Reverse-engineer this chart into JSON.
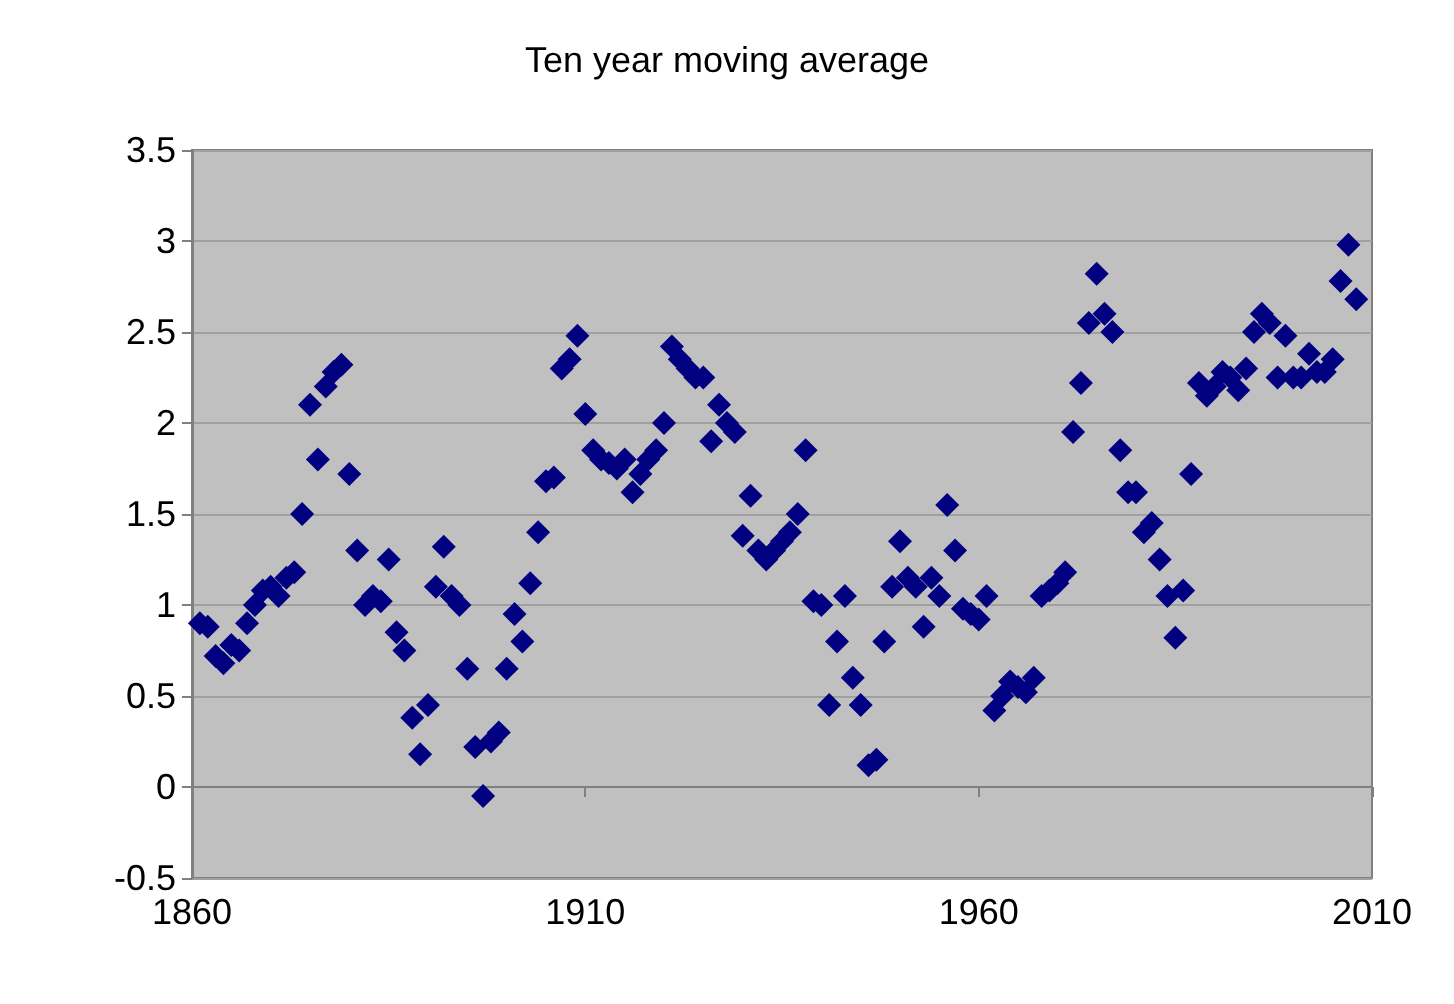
{
  "chart_data": {
    "type": "scatter",
    "title": "Ten year moving average",
    "x": [
      1861,
      1862,
      1863,
      1864,
      1865,
      1866,
      1867,
      1868,
      1869,
      1870,
      1871,
      1872,
      1873,
      1874,
      1875,
      1876,
      1877,
      1878,
      1879,
      1880,
      1881,
      1882,
      1883,
      1884,
      1885,
      1886,
      1887,
      1888,
      1889,
      1890,
      1891,
      1892,
      1893,
      1894,
      1895,
      1896,
      1897,
      1898,
      1899,
      1900,
      1901,
      1902,
      1903,
      1904,
      1905,
      1906,
      1907,
      1908,
      1909,
      1910,
      1911,
      1912,
      1913,
      1914,
      1915,
      1916,
      1917,
      1918,
      1919,
      1920,
      1921,
      1922,
      1923,
      1924,
      1925,
      1926,
      1927,
      1928,
      1929,
      1930,
      1931,
      1932,
      1933,
      1934,
      1935,
      1936,
      1937,
      1938,
      1939,
      1940,
      1941,
      1942,
      1943,
      1944,
      1945,
      1946,
      1947,
      1948,
      1949,
      1950,
      1951,
      1952,
      1953,
      1954,
      1955,
      1956,
      1957,
      1958,
      1959,
      1960,
      1961,
      1962,
      1963,
      1964,
      1965,
      1966,
      1967,
      1968,
      1969,
      1970,
      1971,
      1972,
      1973,
      1974,
      1975,
      1976,
      1977,
      1978,
      1979,
      1980,
      1981,
      1982,
      1983,
      1984,
      1985,
      1986,
      1987,
      1988,
      1989,
      1990,
      1991,
      1992,
      1993,
      1994,
      1995,
      1996,
      1997,
      1998,
      1999,
      2000,
      2001,
      2002,
      2003,
      2004,
      2005,
      2006,
      2007,
      2008
    ],
    "series": [
      {
        "color": "#000080",
        "values": [
          0.9,
          0.88,
          0.72,
          0.68,
          0.78,
          0.75,
          0.9,
          1.0,
          1.08,
          1.1,
          1.05,
          1.15,
          1.18,
          1.5,
          2.1,
          1.8,
          2.2,
          2.28,
          2.32,
          1.72,
          1.3,
          1.0,
          1.05,
          1.02,
          1.25,
          0.85,
          0.75,
          0.38,
          0.18,
          0.45,
          1.1,
          1.32,
          1.05,
          1.0,
          0.65,
          0.22,
          -0.05,
          0.25,
          0.3,
          0.65,
          0.95,
          0.8,
          1.12,
          1.4,
          1.68,
          1.7,
          2.3,
          2.35,
          2.48,
          2.05,
          1.85,
          1.8,
          1.78,
          1.75,
          1.8,
          1.62,
          1.72,
          1.8,
          1.85,
          2.0,
          2.42,
          2.35,
          2.3,
          2.25,
          2.25,
          1.9,
          2.1,
          2.0,
          1.95,
          1.38,
          1.6,
          1.3,
          1.25,
          1.3,
          1.35,
          1.4,
          1.5,
          1.85,
          1.02,
          1.0,
          0.45,
          0.8,
          1.05,
          0.6,
          0.45,
          0.12,
          0.15,
          0.8,
          1.1,
          1.35,
          1.15,
          1.1,
          0.88,
          1.15,
          1.05,
          1.55,
          1.3,
          0.98,
          0.95,
          0.92,
          1.05,
          0.42,
          0.5,
          0.58,
          0.55,
          0.52,
          0.6,
          1.05,
          1.08,
          1.12,
          1.18,
          1.95,
          2.22,
          2.55,
          2.82,
          2.6,
          2.5,
          1.85,
          1.62,
          1.62,
          1.4,
          1.45,
          1.25,
          1.05,
          0.82,
          1.08,
          1.72,
          2.22,
          2.15,
          2.2,
          2.28,
          2.25,
          2.18,
          2.3,
          2.5,
          2.6,
          2.55,
          2.25,
          2.48,
          2.25,
          2.25,
          2.38,
          2.28,
          2.28,
          2.35,
          2.78,
          2.98,
          2.68
        ]
      }
    ],
    "xlim": [
      1860,
      2010
    ],
    "xticks": [
      1860,
      1910,
      1960,
      2010
    ],
    "ylim": [
      -0.5,
      3.5
    ],
    "yticks": [
      -0.5,
      0,
      0.5,
      1,
      1.5,
      2,
      2.5,
      3,
      3.5
    ],
    "grid": "y",
    "marker": "diamond"
  }
}
